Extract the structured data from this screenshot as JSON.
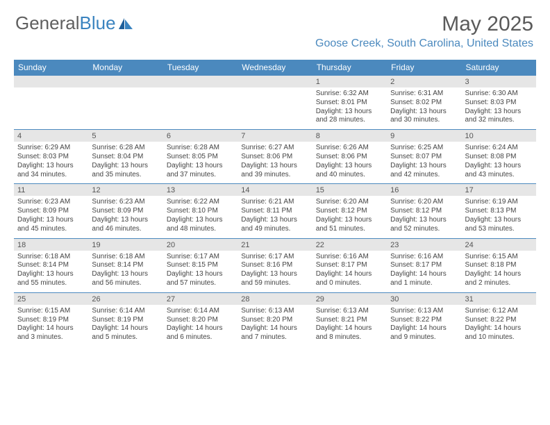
{
  "brand": {
    "part1": "General",
    "part2": "Blue"
  },
  "title": "May 2025",
  "location": "Goose Creek, South Carolina, United States",
  "colors": {
    "header_blue": "#4b89be",
    "day_bar": "#e6e6e6",
    "text_gray": "#5a5a5a",
    "body_text": "#444444",
    "rule": "#4b89be"
  },
  "days_of_week": [
    "Sunday",
    "Monday",
    "Tuesday",
    "Wednesday",
    "Thursday",
    "Friday",
    "Saturday"
  ],
  "weeks": [
    [
      {
        "n": "",
        "sunrise": "",
        "sunset": "",
        "daylight": ""
      },
      {
        "n": "",
        "sunrise": "",
        "sunset": "",
        "daylight": ""
      },
      {
        "n": "",
        "sunrise": "",
        "sunset": "",
        "daylight": ""
      },
      {
        "n": "",
        "sunrise": "",
        "sunset": "",
        "daylight": ""
      },
      {
        "n": "1",
        "sunrise": "Sunrise: 6:32 AM",
        "sunset": "Sunset: 8:01 PM",
        "daylight": "Daylight: 13 hours and 28 minutes."
      },
      {
        "n": "2",
        "sunrise": "Sunrise: 6:31 AM",
        "sunset": "Sunset: 8:02 PM",
        "daylight": "Daylight: 13 hours and 30 minutes."
      },
      {
        "n": "3",
        "sunrise": "Sunrise: 6:30 AM",
        "sunset": "Sunset: 8:03 PM",
        "daylight": "Daylight: 13 hours and 32 minutes."
      }
    ],
    [
      {
        "n": "4",
        "sunrise": "Sunrise: 6:29 AM",
        "sunset": "Sunset: 8:03 PM",
        "daylight": "Daylight: 13 hours and 34 minutes."
      },
      {
        "n": "5",
        "sunrise": "Sunrise: 6:28 AM",
        "sunset": "Sunset: 8:04 PM",
        "daylight": "Daylight: 13 hours and 35 minutes."
      },
      {
        "n": "6",
        "sunrise": "Sunrise: 6:28 AM",
        "sunset": "Sunset: 8:05 PM",
        "daylight": "Daylight: 13 hours and 37 minutes."
      },
      {
        "n": "7",
        "sunrise": "Sunrise: 6:27 AM",
        "sunset": "Sunset: 8:06 PM",
        "daylight": "Daylight: 13 hours and 39 minutes."
      },
      {
        "n": "8",
        "sunrise": "Sunrise: 6:26 AM",
        "sunset": "Sunset: 8:06 PM",
        "daylight": "Daylight: 13 hours and 40 minutes."
      },
      {
        "n": "9",
        "sunrise": "Sunrise: 6:25 AM",
        "sunset": "Sunset: 8:07 PM",
        "daylight": "Daylight: 13 hours and 42 minutes."
      },
      {
        "n": "10",
        "sunrise": "Sunrise: 6:24 AM",
        "sunset": "Sunset: 8:08 PM",
        "daylight": "Daylight: 13 hours and 43 minutes."
      }
    ],
    [
      {
        "n": "11",
        "sunrise": "Sunrise: 6:23 AM",
        "sunset": "Sunset: 8:09 PM",
        "daylight": "Daylight: 13 hours and 45 minutes."
      },
      {
        "n": "12",
        "sunrise": "Sunrise: 6:23 AM",
        "sunset": "Sunset: 8:09 PM",
        "daylight": "Daylight: 13 hours and 46 minutes."
      },
      {
        "n": "13",
        "sunrise": "Sunrise: 6:22 AM",
        "sunset": "Sunset: 8:10 PM",
        "daylight": "Daylight: 13 hours and 48 minutes."
      },
      {
        "n": "14",
        "sunrise": "Sunrise: 6:21 AM",
        "sunset": "Sunset: 8:11 PM",
        "daylight": "Daylight: 13 hours and 49 minutes."
      },
      {
        "n": "15",
        "sunrise": "Sunrise: 6:20 AM",
        "sunset": "Sunset: 8:12 PM",
        "daylight": "Daylight: 13 hours and 51 minutes."
      },
      {
        "n": "16",
        "sunrise": "Sunrise: 6:20 AM",
        "sunset": "Sunset: 8:12 PM",
        "daylight": "Daylight: 13 hours and 52 minutes."
      },
      {
        "n": "17",
        "sunrise": "Sunrise: 6:19 AM",
        "sunset": "Sunset: 8:13 PM",
        "daylight": "Daylight: 13 hours and 53 minutes."
      }
    ],
    [
      {
        "n": "18",
        "sunrise": "Sunrise: 6:18 AM",
        "sunset": "Sunset: 8:14 PM",
        "daylight": "Daylight: 13 hours and 55 minutes."
      },
      {
        "n": "19",
        "sunrise": "Sunrise: 6:18 AM",
        "sunset": "Sunset: 8:14 PM",
        "daylight": "Daylight: 13 hours and 56 minutes."
      },
      {
        "n": "20",
        "sunrise": "Sunrise: 6:17 AM",
        "sunset": "Sunset: 8:15 PM",
        "daylight": "Daylight: 13 hours and 57 minutes."
      },
      {
        "n": "21",
        "sunrise": "Sunrise: 6:17 AM",
        "sunset": "Sunset: 8:16 PM",
        "daylight": "Daylight: 13 hours and 59 minutes."
      },
      {
        "n": "22",
        "sunrise": "Sunrise: 6:16 AM",
        "sunset": "Sunset: 8:17 PM",
        "daylight": "Daylight: 14 hours and 0 minutes."
      },
      {
        "n": "23",
        "sunrise": "Sunrise: 6:16 AM",
        "sunset": "Sunset: 8:17 PM",
        "daylight": "Daylight: 14 hours and 1 minute."
      },
      {
        "n": "24",
        "sunrise": "Sunrise: 6:15 AM",
        "sunset": "Sunset: 8:18 PM",
        "daylight": "Daylight: 14 hours and 2 minutes."
      }
    ],
    [
      {
        "n": "25",
        "sunrise": "Sunrise: 6:15 AM",
        "sunset": "Sunset: 8:19 PM",
        "daylight": "Daylight: 14 hours and 3 minutes."
      },
      {
        "n": "26",
        "sunrise": "Sunrise: 6:14 AM",
        "sunset": "Sunset: 8:19 PM",
        "daylight": "Daylight: 14 hours and 5 minutes."
      },
      {
        "n": "27",
        "sunrise": "Sunrise: 6:14 AM",
        "sunset": "Sunset: 8:20 PM",
        "daylight": "Daylight: 14 hours and 6 minutes."
      },
      {
        "n": "28",
        "sunrise": "Sunrise: 6:13 AM",
        "sunset": "Sunset: 8:20 PM",
        "daylight": "Daylight: 14 hours and 7 minutes."
      },
      {
        "n": "29",
        "sunrise": "Sunrise: 6:13 AM",
        "sunset": "Sunset: 8:21 PM",
        "daylight": "Daylight: 14 hours and 8 minutes."
      },
      {
        "n": "30",
        "sunrise": "Sunrise: 6:13 AM",
        "sunset": "Sunset: 8:22 PM",
        "daylight": "Daylight: 14 hours and 9 minutes."
      },
      {
        "n": "31",
        "sunrise": "Sunrise: 6:12 AM",
        "sunset": "Sunset: 8:22 PM",
        "daylight": "Daylight: 14 hours and 10 minutes."
      }
    ]
  ]
}
